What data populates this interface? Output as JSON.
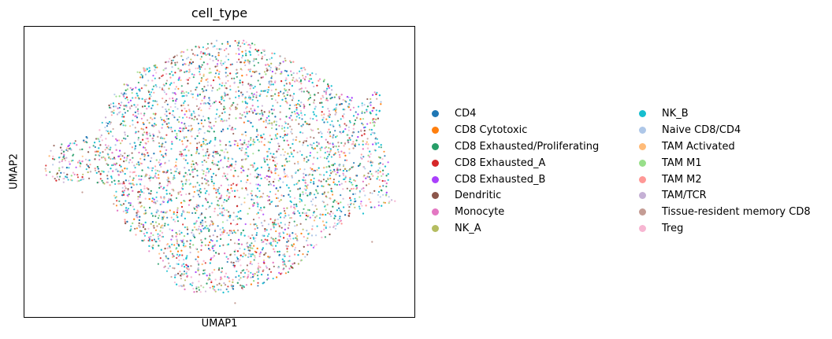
{
  "chart_data": {
    "type": "scatter",
    "title": "cell_type",
    "xlabel": "UMAP1",
    "ylabel": "UMAP2",
    "xlim": [
      0,
      10
    ],
    "ylim": [
      0,
      10
    ],
    "grid": false,
    "ticks": "none",
    "legend_placement": "right, two columns",
    "series": [
      {
        "name": "CD4",
        "color": "#1f77b4"
      },
      {
        "name": "CD8 Cytotoxic",
        "color": "#ff7f0e"
      },
      {
        "name": "CD8 Exhausted/Proliferating",
        "color": "#279e68"
      },
      {
        "name": "CD8 Exhausted_A",
        "color": "#d62728"
      },
      {
        "name": "CD8 Exhausted_B",
        "color": "#aa40fc"
      },
      {
        "name": "Dendritic",
        "color": "#8c564b"
      },
      {
        "name": "Monocyte",
        "color": "#e377c2"
      },
      {
        "name": "NK_A",
        "color": "#b5bd61"
      },
      {
        "name": "NK_B",
        "color": "#17becf"
      },
      {
        "name": "Naive CD8/CD4",
        "color": "#aec7e8"
      },
      {
        "name": "TAM Activated",
        "color": "#ffbb78"
      },
      {
        "name": "TAM M1",
        "color": "#98df8a"
      },
      {
        "name": "TAM M2",
        "color": "#ff9896"
      },
      {
        "name": "TAM/TCR",
        "color": "#c5b0d5"
      },
      {
        "name": "Tissue-resident memory CD8",
        "color": "#c49c94"
      },
      {
        "name": "Treg",
        "color": "#f7b6d2"
      }
    ],
    "cloud_outline": [
      [
        0.5,
        5.1
      ],
      [
        0.7,
        5.9
      ],
      [
        1.0,
        6.0
      ],
      [
        1.6,
        6.2
      ],
      [
        1.8,
        6.0
      ],
      [
        2.3,
        7.7
      ],
      [
        2.6,
        8.1
      ],
      [
        3.0,
        8.6
      ],
      [
        4.0,
        9.1
      ],
      [
        4.7,
        9.5
      ],
      [
        5.7,
        9.5
      ],
      [
        6.4,
        9.1
      ],
      [
        7.3,
        8.5
      ],
      [
        8.2,
        7.7
      ],
      [
        8.6,
        7.4
      ],
      [
        9.0,
        7.8
      ],
      [
        9.2,
        7.5
      ],
      [
        9.0,
        6.5
      ],
      [
        9.4,
        5.0
      ],
      [
        9.3,
        4.3
      ],
      [
        9.5,
        4.0
      ],
      [
        8.9,
        3.7
      ],
      [
        8.2,
        3.3
      ],
      [
        7.6,
        2.6
      ],
      [
        6.9,
        1.6
      ],
      [
        6.0,
        1.1
      ],
      [
        5.0,
        0.8
      ],
      [
        4.2,
        0.9
      ],
      [
        3.8,
        1.2
      ],
      [
        3.0,
        2.6
      ],
      [
        2.4,
        3.4
      ],
      [
        2.2,
        4.5
      ],
      [
        1.6,
        4.7
      ],
      [
        1.3,
        4.4
      ],
      [
        1.0,
        4.6
      ],
      [
        0.5,
        4.8
      ]
    ],
    "point_count": 5200,
    "point_size": "tiny",
    "cloud_seed": 12345
  }
}
